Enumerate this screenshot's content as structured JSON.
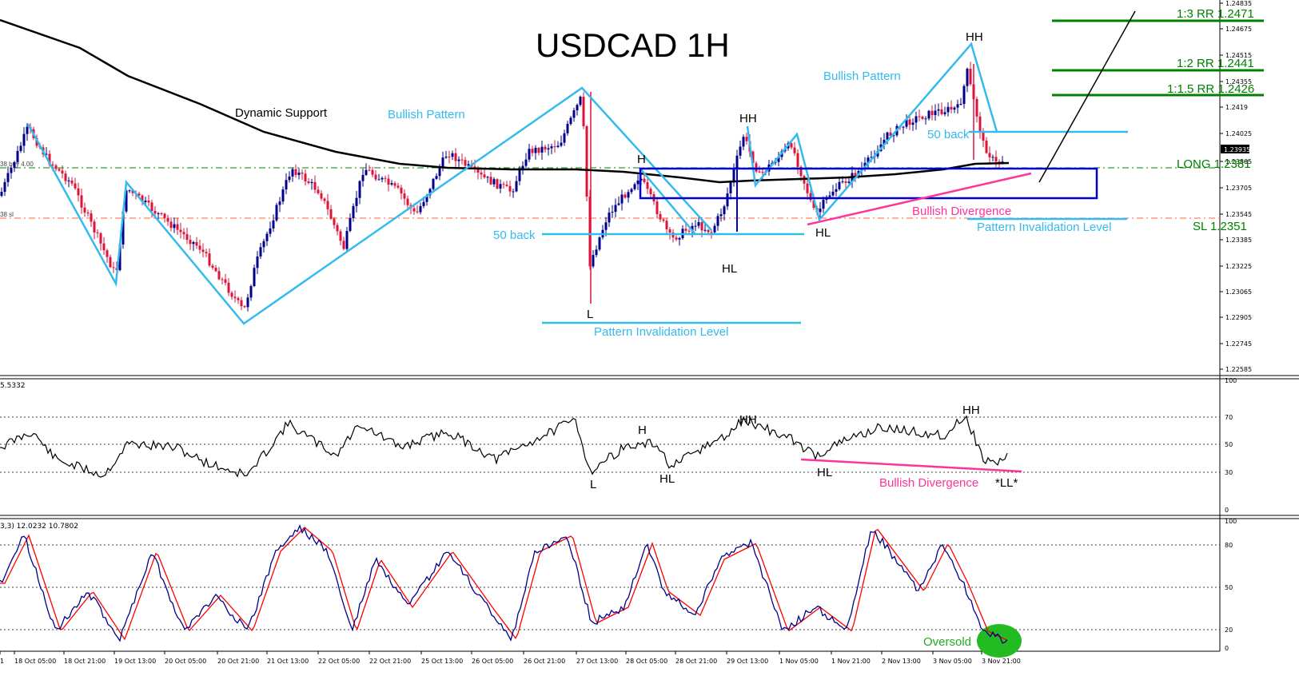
{
  "chart_data": {
    "type": "candlestick",
    "title": "USDCAD 1H",
    "symbol": "USDCAD",
    "timeframe": "1H",
    "price_axis": {
      "ticks": [
        "1.24835",
        "1.24675",
        "1.24515",
        "1.24355",
        "1.2419",
        "1.24025",
        "1.23935",
        "1.23865",
        "1.23705",
        "1.23545",
        "1.23385",
        "1.23225",
        "1.23065",
        "1.22905",
        "1.22745",
        "1.22585"
      ],
      "current_price": "1.23935",
      "ylim": [
        1.2258,
        1.2484
      ]
    },
    "time_axis": {
      "ticks": [
        "1",
        "18 Oct 05:00",
        "18 Oct 21:00",
        "19 Oct 13:00",
        "20 Oct 05:00",
        "20 Oct 21:00",
        "21 Oct 13:00",
        "22 Oct 05:00",
        "22 Oct 21:00",
        "25 Oct 13:00",
        "26 Oct 05:00",
        "26 Oct 21:00",
        "27 Oct 13:00",
        "28 Oct 05:00",
        "28 Oct 21:00",
        "29 Oct 13:00",
        "1 Nov 05:00",
        "1 Nov 21:00",
        "2 Nov 13:00",
        "3 Nov 05:00",
        "3 Nov 21:00"
      ]
    },
    "levels": [
      {
        "label": "1:3 RR 1.2471",
        "price": 1.2471,
        "color": "#008000"
      },
      {
        "label": "1:2 RR 1.2441",
        "price": 1.2441,
        "color": "#008000"
      },
      {
        "label": "1:1.5 RR 1.2426",
        "price": 1.2426,
        "color": "#008000"
      },
      {
        "label": "LONG 1.2381",
        "price": 1.2381,
        "color": "#008000"
      },
      {
        "label": "SL 1.2351",
        "price": 1.2351,
        "color": "#008000"
      }
    ],
    "annotations": {
      "dynamic_support": "Dynamic Support",
      "bullish_pattern_1": "Bullish Pattern",
      "bullish_pattern_2": "Bullish Pattern",
      "fifty_back_1": "50 back",
      "fifty_back_2": "50 back",
      "invalidation_1": "Pattern Invalidation Level",
      "invalidation_2": "Pattern Invalidation Level",
      "hh_1": "HH",
      "hh_2": "HH",
      "h": "H",
      "l": "L",
      "hl_1": "HL",
      "hl_2": "HL",
      "bullish_divergence": "Bullish Divergence",
      "left_buy_label": "38 buy 4.00",
      "left_sl_label": "38 sl"
    },
    "rsi": {
      "header_value": "5.5332",
      "ticks": [
        "100",
        "70",
        "50",
        "30",
        "0"
      ],
      "labels": {
        "hh": "HH",
        "h": "H",
        "l": "L",
        "hl_1": "HL",
        "hl_2": "HL",
        "ll": "*LL*",
        "divergence": "Bullish Divergence"
      }
    },
    "stochastic": {
      "header_value": "3,3) 12.0232 10.7802",
      "ticks": [
        "100",
        "80",
        "50",
        "20",
        "0"
      ],
      "main_color": "#00008b",
      "signal_color": "#ff0000",
      "oversold_label": "Oversold",
      "oversold_highlight": "#22bb22"
    },
    "colors": {
      "bull_candle": "#00008b",
      "bear_candle": "#dc143c",
      "pattern": "#33bbee",
      "zone": "#0000cc",
      "divergence": "#ff3399",
      "moving_average": "#000000",
      "rr_levels": "#008000"
    }
  }
}
